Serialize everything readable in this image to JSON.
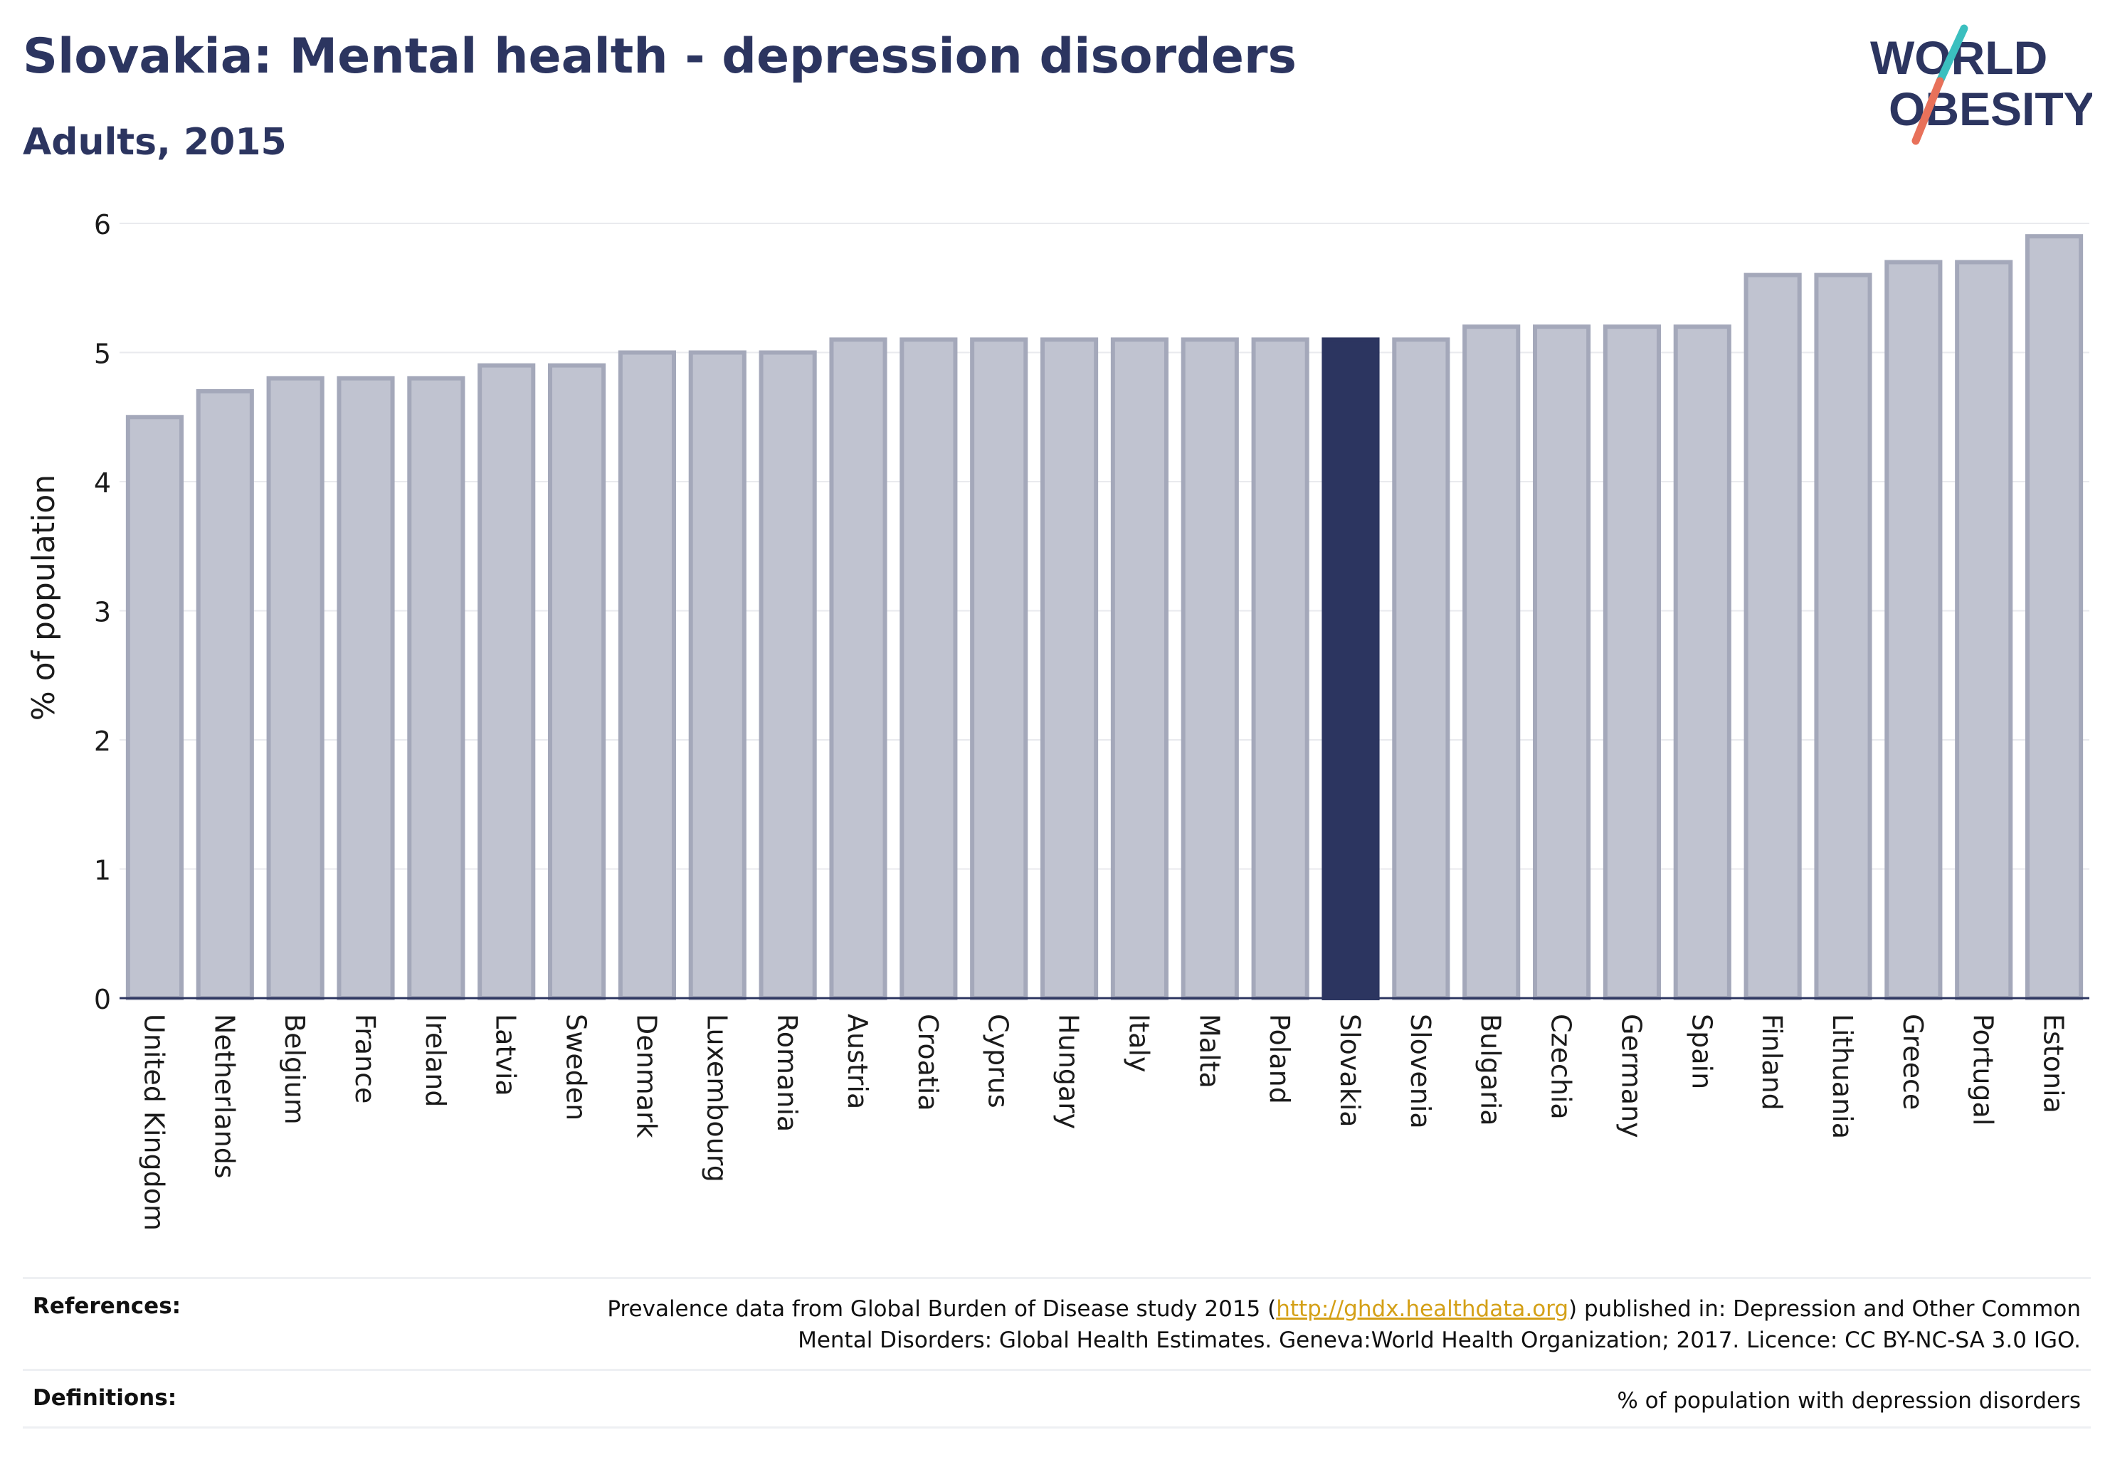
{
  "header": {
    "title": "Slovakia: Mental health - depression disorders",
    "subtitle": "Adults, 2015"
  },
  "logo": {
    "line1": "WORLD",
    "line2": "OBESITY",
    "colors": {
      "text": "#2c3560",
      "slash_top": "#3bbfbf",
      "slash_bottom": "#e8715a"
    }
  },
  "chart_data": {
    "type": "bar",
    "title": "Slovakia: Mental health - depression disorders",
    "subtitle": "Adults, 2015",
    "ylabel": "% of population",
    "xlabel": "",
    "ylim": [
      0,
      6
    ],
    "yticks": [
      0,
      1,
      2,
      3,
      4,
      5,
      6
    ],
    "grid": true,
    "highlight": "Slovakia",
    "colors": {
      "bar": "#c0c3d0",
      "bar_border": "#a4a8ba",
      "highlight": "#2c3560",
      "axis": "#2c3560"
    },
    "categories": [
      "United Kingdom",
      "Netherlands",
      "Belgium",
      "France",
      "Ireland",
      "Latvia",
      "Sweden",
      "Denmark",
      "Luxembourg",
      "Romania",
      "Austria",
      "Croatia",
      "Cyprus",
      "Hungary",
      "Italy",
      "Malta",
      "Poland",
      "Slovakia",
      "Slovenia",
      "Bulgaria",
      "Czechia",
      "Germany",
      "Spain",
      "Finland",
      "Lithuania",
      "Greece",
      "Portugal",
      "Estonia"
    ],
    "values": [
      4.5,
      4.7,
      4.8,
      4.8,
      4.8,
      4.9,
      4.9,
      5.0,
      5.0,
      5.0,
      5.1,
      5.1,
      5.1,
      5.1,
      5.1,
      5.1,
      5.1,
      5.1,
      5.1,
      5.2,
      5.2,
      5.2,
      5.2,
      5.6,
      5.6,
      5.7,
      5.7,
      5.9
    ]
  },
  "footer": {
    "references_label": "References:",
    "references_pre": "Prevalence data from Global Burden of Disease study 2015 (",
    "references_link": "http://ghdx.healthdata.org",
    "references_post": ") published in: Depression and Other Common",
    "references_line2": "Mental Disorders: Global Health Estimates. Geneva:World Health Organization; 2017. Licence: CC BY-NC-SA 3.0 IGO.",
    "definitions_label": "Definitions:",
    "definitions_text": "% of population with depression disorders"
  }
}
